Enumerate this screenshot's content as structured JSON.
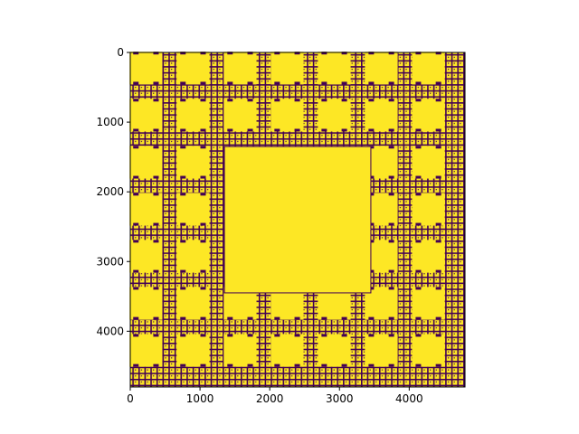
{
  "chart_data": {
    "type": "heatmap",
    "title": "",
    "xlabel": "",
    "ylabel": "",
    "xlim": [
      0,
      4800
    ],
    "ylim": [
      4800,
      0
    ],
    "x_ticks": [
      0,
      1000,
      2000,
      3000,
      4000
    ],
    "y_ticks": [
      0,
      1000,
      2000,
      3000,
      4000
    ],
    "x_tick_labels": [
      "0",
      "1000",
      "2000",
      "3000",
      "4000"
    ],
    "y_tick_labels": [
      "0",
      "1000",
      "2000",
      "3000",
      "4000"
    ],
    "image_description": "Sierpinski carpet style fractal, 4800x4800 grid",
    "colormap": "viridis",
    "colors": {
      "filled": "#fde725",
      "empty": "#440154"
    },
    "grid": false,
    "large_hole": {
      "x": [
        1350,
        3450
      ],
      "y": [
        1350,
        3450
      ]
    },
    "medium_hole_centers": [
      225,
      900,
      1575,
      2250,
      2925,
      3600,
      4275
    ],
    "medium_hole_half_size": 235
  }
}
